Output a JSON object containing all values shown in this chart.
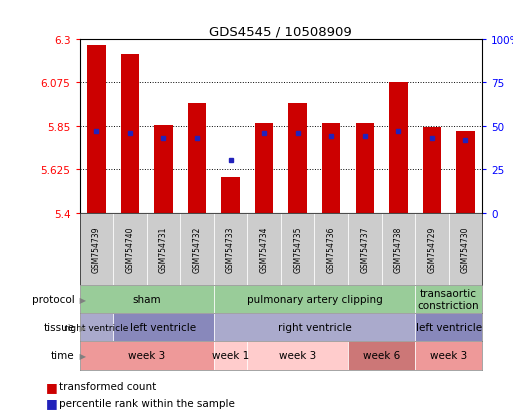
{
  "title": "GDS4545 / 10508909",
  "samples": [
    "GSM754739",
    "GSM754740",
    "GSM754731",
    "GSM754732",
    "GSM754733",
    "GSM754734",
    "GSM754735",
    "GSM754736",
    "GSM754737",
    "GSM754738",
    "GSM754729",
    "GSM754730"
  ],
  "bar_values": [
    6.27,
    6.22,
    5.855,
    5.965,
    5.585,
    5.865,
    5.97,
    5.865,
    5.865,
    6.075,
    5.845,
    5.825
  ],
  "bar_base": 5.4,
  "percentile_values": [
    47,
    46,
    43,
    43,
    30,
    46,
    46,
    44,
    44,
    47,
    43,
    42
  ],
  "ylim_left": [
    5.4,
    6.3
  ],
  "yticks_left": [
    5.4,
    5.625,
    5.85,
    6.075,
    6.3
  ],
  "ytick_labels_left": [
    "5.4",
    "5.625",
    "5.85",
    "6.075",
    "6.3"
  ],
  "yticks_right_pct": [
    0,
    25,
    50,
    75,
    100
  ],
  "ytick_labels_right": [
    "0",
    "25",
    "50",
    "75",
    "100%"
  ],
  "bar_color": "#cc0000",
  "percentile_color": "#2222bb",
  "protocol_groups": [
    {
      "label": "sham",
      "start": 0,
      "end": 4,
      "color": "#99cc99"
    },
    {
      "label": "pulmonary artery clipping",
      "start": 4,
      "end": 10,
      "color": "#99cc99"
    },
    {
      "label": "transaortic\nconstriction",
      "start": 10,
      "end": 12,
      "color": "#99cc99"
    }
  ],
  "tissue_groups": [
    {
      "label": "right ventricle",
      "start": 0,
      "end": 1,
      "color": "#aaaacc"
    },
    {
      "label": "left ventricle",
      "start": 1,
      "end": 4,
      "color": "#8888bb"
    },
    {
      "label": "right ventricle",
      "start": 4,
      "end": 10,
      "color": "#aaaacc"
    },
    {
      "label": "left ventricle",
      "start": 10,
      "end": 12,
      "color": "#8888bb"
    }
  ],
  "time_groups": [
    {
      "label": "week 3",
      "start": 0,
      "end": 4,
      "color": "#ee9999"
    },
    {
      "label": "week 1",
      "start": 4,
      "end": 5,
      "color": "#ffcccc"
    },
    {
      "label": "week 3",
      "start": 5,
      "end": 8,
      "color": "#ffcccc"
    },
    {
      "label": "week 6",
      "start": 8,
      "end": 10,
      "color": "#cc7777"
    },
    {
      "label": "week 3",
      "start": 10,
      "end": 12,
      "color": "#ee9999"
    }
  ],
  "row_labels": [
    "protocol",
    "tissue",
    "time"
  ],
  "legend_items": [
    {
      "label": "transformed count",
      "color": "#cc0000"
    },
    {
      "label": "percentile rank within the sample",
      "color": "#2222bb"
    }
  ],
  "gsm_bg_color": "#cccccc",
  "fig_bg": "#ffffff"
}
